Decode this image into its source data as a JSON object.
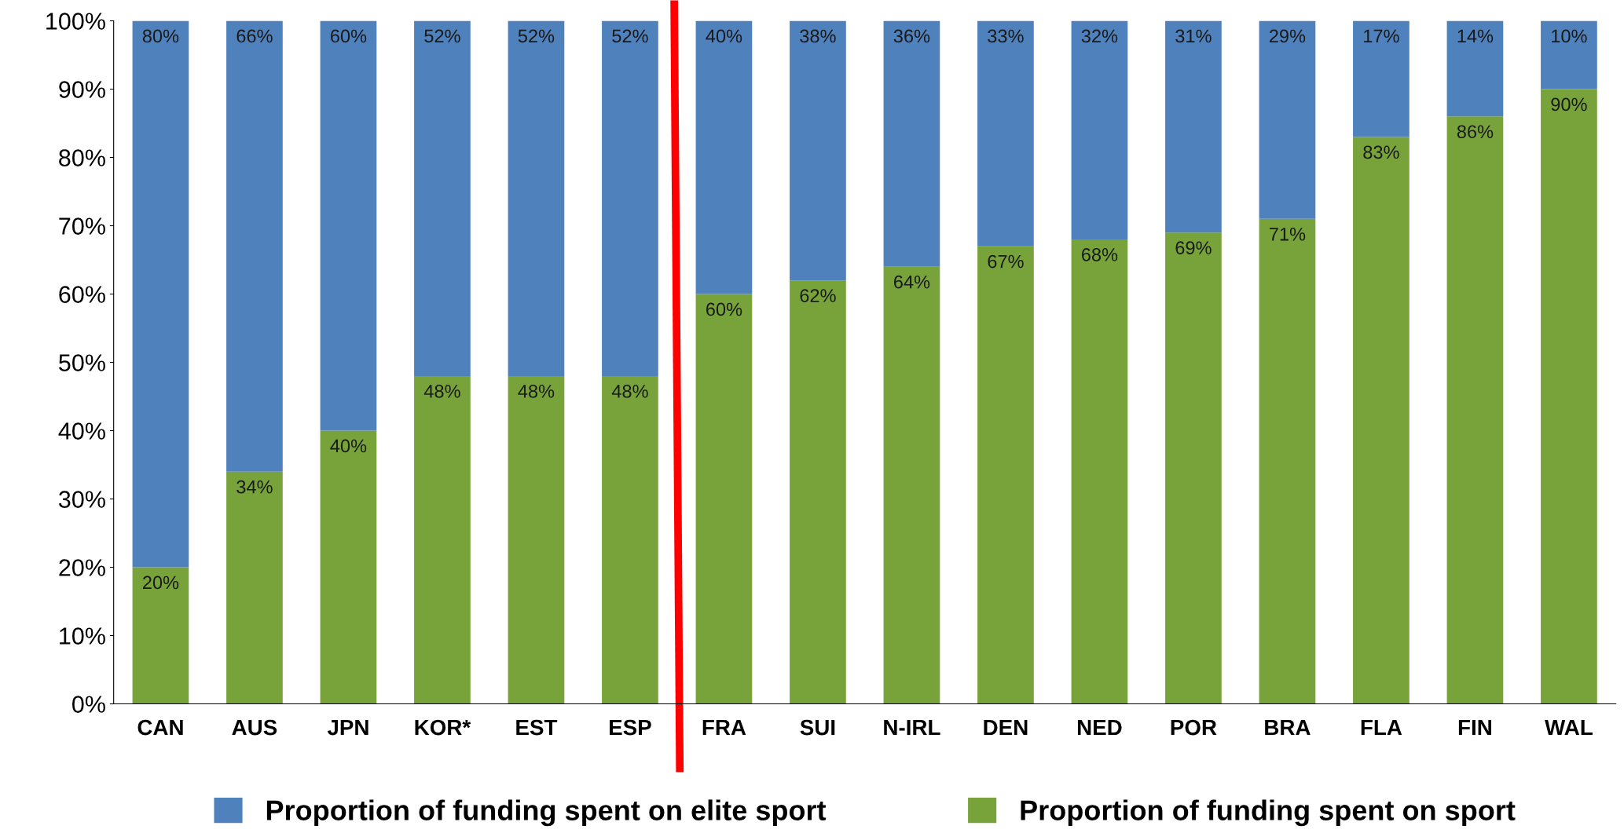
{
  "chart_data": {
    "type": "bar",
    "stacked": true,
    "categories": [
      "CAN",
      "AUS",
      "JPN",
      "KOR*",
      "EST",
      "ESP",
      "FRA",
      "SUI",
      "N-IRL",
      "DEN",
      "NED",
      "POR",
      "BRA",
      "FLA",
      "FIN",
      "WAL"
    ],
    "series": [
      {
        "name": "Proportion of funding spent on sport",
        "color": "#77a33a",
        "values": [
          20,
          34,
          40,
          48,
          48,
          48,
          60,
          62,
          64,
          67,
          68,
          69,
          71,
          83,
          86,
          90
        ],
        "value_labels": [
          "20%",
          "34%",
          "40%",
          "48%",
          "48%",
          "48%",
          "60%",
          "62%",
          "64%",
          "67%",
          "68%",
          "69%",
          "71%",
          "83%",
          "86%",
          "90%"
        ]
      },
      {
        "name": "Proportion of funding spent on elite sport",
        "color": "#4f81bd",
        "values": [
          80,
          66,
          60,
          52,
          52,
          52,
          40,
          38,
          36,
          33,
          32,
          31,
          29,
          17,
          14,
          10
        ],
        "value_labels": [
          "80%",
          "66%",
          "60%",
          "52%",
          "52%",
          "52%",
          "40%",
          "38%",
          "36%",
          "33%",
          "32%",
          "31%",
          "29%",
          "17%",
          "14%",
          "10%"
        ]
      }
    ],
    "ylim": [
      0,
      100
    ],
    "yticks": [
      {
        "value": 0,
        "label": "0%"
      },
      {
        "value": 10,
        "label": "10%"
      },
      {
        "value": 20,
        "label": "20%"
      },
      {
        "value": 30,
        "label": "30%"
      },
      {
        "value": 40,
        "label": "40%"
      },
      {
        "value": 50,
        "label": "50%"
      },
      {
        "value": 60,
        "label": "60%"
      },
      {
        "value": 70,
        "label": "70%"
      },
      {
        "value": 80,
        "label": "80%"
      },
      {
        "value": 90,
        "label": "90%"
      },
      {
        "value": 100,
        "label": "100%"
      }
    ],
    "grid": false,
    "legend": "bottom"
  }
}
